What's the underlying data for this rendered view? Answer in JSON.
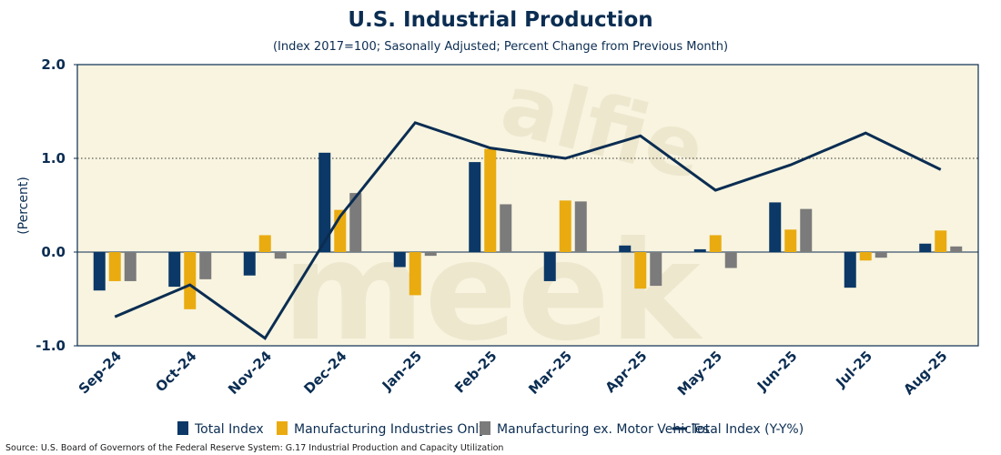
{
  "chart_data": {
    "type": "bar",
    "title": "U.S. Industrial Production",
    "subtitle": "(Index 2017=100; Sasonally Adjusted; Percent Change from Previous Month)",
    "ylabel": "(Percent)",
    "xlabel": "",
    "ylim": [
      -1.0,
      2.0
    ],
    "yticks": [
      "2.0",
      "1.0",
      "0.0",
      "-1.0"
    ],
    "ytick_values": [
      2.0,
      1.0,
      0.0,
      -1.0
    ],
    "reference_line": 1.0,
    "categories": [
      "Sep-24",
      "Oct-24",
      "Nov-24",
      "Dec-24",
      "Jan-25",
      "Feb-25",
      "Mar-25",
      "Apr-25",
      "May-25",
      "Jun-25",
      "Jul-25",
      "Aug-25"
    ],
    "series": [
      {
        "name": "Total Index",
        "type": "bar",
        "color": "#0b3866",
        "values": [
          -0.41,
          -0.37,
          -0.25,
          1.06,
          -0.16,
          0.96,
          -0.31,
          0.07,
          0.03,
          0.53,
          -0.38,
          0.09
        ]
      },
      {
        "name": "Manufacturing Industries Only",
        "type": "bar",
        "color": "#e9ab0f",
        "values": [
          -0.31,
          -0.61,
          0.18,
          0.45,
          -0.46,
          1.1,
          0.55,
          -0.39,
          0.18,
          0.24,
          -0.09,
          0.23
        ]
      },
      {
        "name": "Manufacturing ex. Motor Vehicles",
        "type": "bar",
        "color": "#7b7b7b",
        "values": [
          -0.31,
          -0.29,
          -0.07,
          0.63,
          -0.04,
          0.51,
          0.54,
          -0.36,
          -0.17,
          0.46,
          -0.06,
          0.06
        ]
      },
      {
        "name": "Total Index (Y-Y%)",
        "type": "line",
        "color": "#0b2d52",
        "values": [
          -0.69,
          -0.35,
          -0.92,
          0.38,
          1.38,
          1.11,
          1.0,
          1.24,
          0.66,
          0.93,
          1.27,
          0.88
        ]
      }
    ],
    "watermark": "alfie meek",
    "source": "Source: U.S. Board of Governors of the Federal Reserve System: G.17 Industrial Production and Capacity Utilization"
  }
}
